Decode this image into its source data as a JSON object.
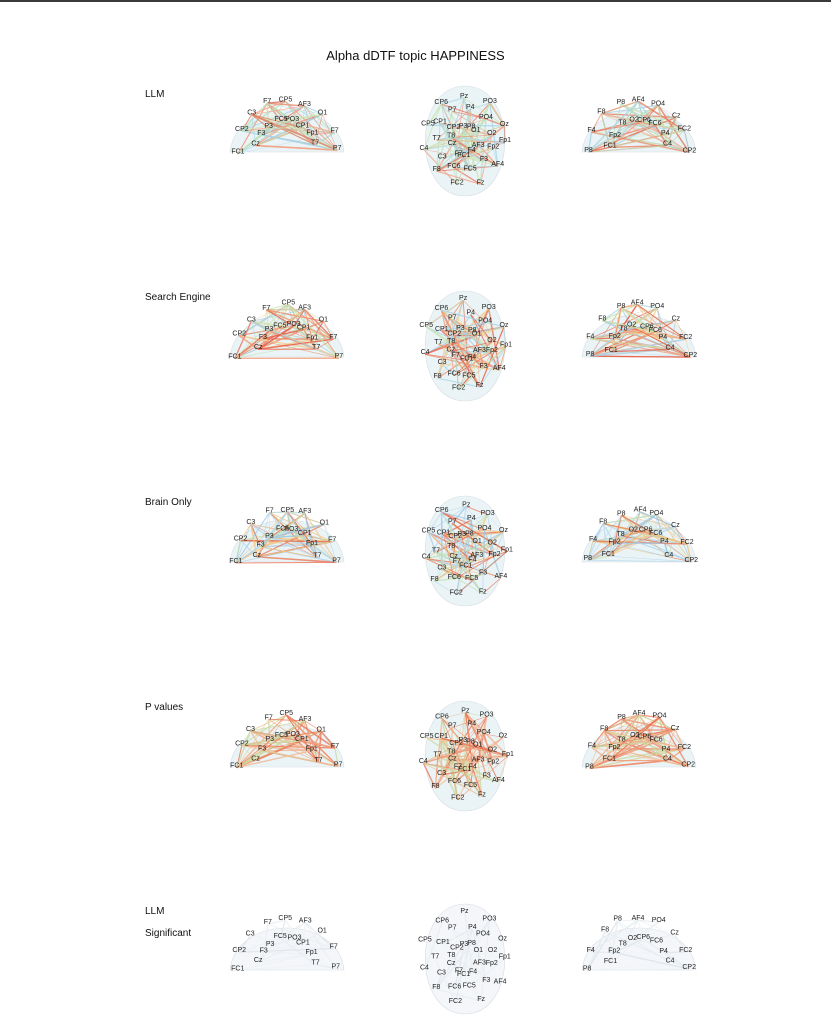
{
  "title": "Alpha dDTF topic HAPPINESS",
  "rows": [
    {
      "label": "LLM",
      "label2": "",
      "palette": "llm"
    },
    {
      "label": "Search Engine",
      "label2": "",
      "palette": "search"
    },
    {
      "label": "Brain Only",
      "label2": "",
      "palette": "brain"
    },
    {
      "label": "P values",
      "label2": "",
      "palette": "pvals"
    },
    {
      "label": "LLM",
      "label2": "Significant",
      "palette": "sig"
    }
  ],
  "views": [
    {
      "name": "left-lateral",
      "electrodes": [
        "FC1",
        "Cz",
        "CP2",
        "F3",
        "C3",
        "P3",
        "F7",
        "FC5",
        "CP5",
        "PO3",
        "AF3",
        "CP1",
        "O1",
        "Fp1",
        "F7",
        "T7",
        "P7"
      ]
    },
    {
      "name": "top",
      "electrodes": [
        "Fp1",
        "Fp2",
        "AF3",
        "AF4",
        "F3",
        "F4",
        "Fz",
        "FC5",
        "FC1",
        "FC2",
        "FC6",
        "F7",
        "F8",
        "C3",
        "Cz",
        "C4",
        "T7",
        "T8",
        "CP5",
        "CP1",
        "CP2",
        "CP6",
        "P7",
        "P3",
        "Pz",
        "P4",
        "P8",
        "PO3",
        "PO4",
        "O1",
        "Oz",
        "O2"
      ]
    },
    {
      "name": "right-lateral",
      "electrodes": [
        "CP2",
        "C4",
        "FC2",
        "P4",
        "Cz",
        "FC6",
        "PO4",
        "CP6",
        "AF4",
        "O2",
        "P8",
        "T8",
        "F8",
        "Fp2",
        "F4",
        "FC1",
        "P8"
      ]
    }
  ],
  "palettes": {
    "llm": [
      "#a7d3e6",
      "#b8dfc0",
      "#c9e3b0",
      "#f2a285",
      "#e8785a"
    ],
    "search": [
      "#a7d3e6",
      "#c7e3b0",
      "#f6c98a",
      "#f2946f",
      "#e8604a"
    ],
    "brain": [
      "#9ec8e6",
      "#b5d8ef",
      "#c6e3b5",
      "#f4c07c",
      "#e9704f"
    ],
    "pvals": [
      "#f2b08a",
      "#f09070",
      "#e9704f",
      "#f5c49b",
      "#c9d9a0"
    ],
    "sig": [
      "#e6edf2",
      "#eef2f6",
      "#dfe6ec",
      "#f1f4f7",
      "#e9eef2"
    ]
  }
}
